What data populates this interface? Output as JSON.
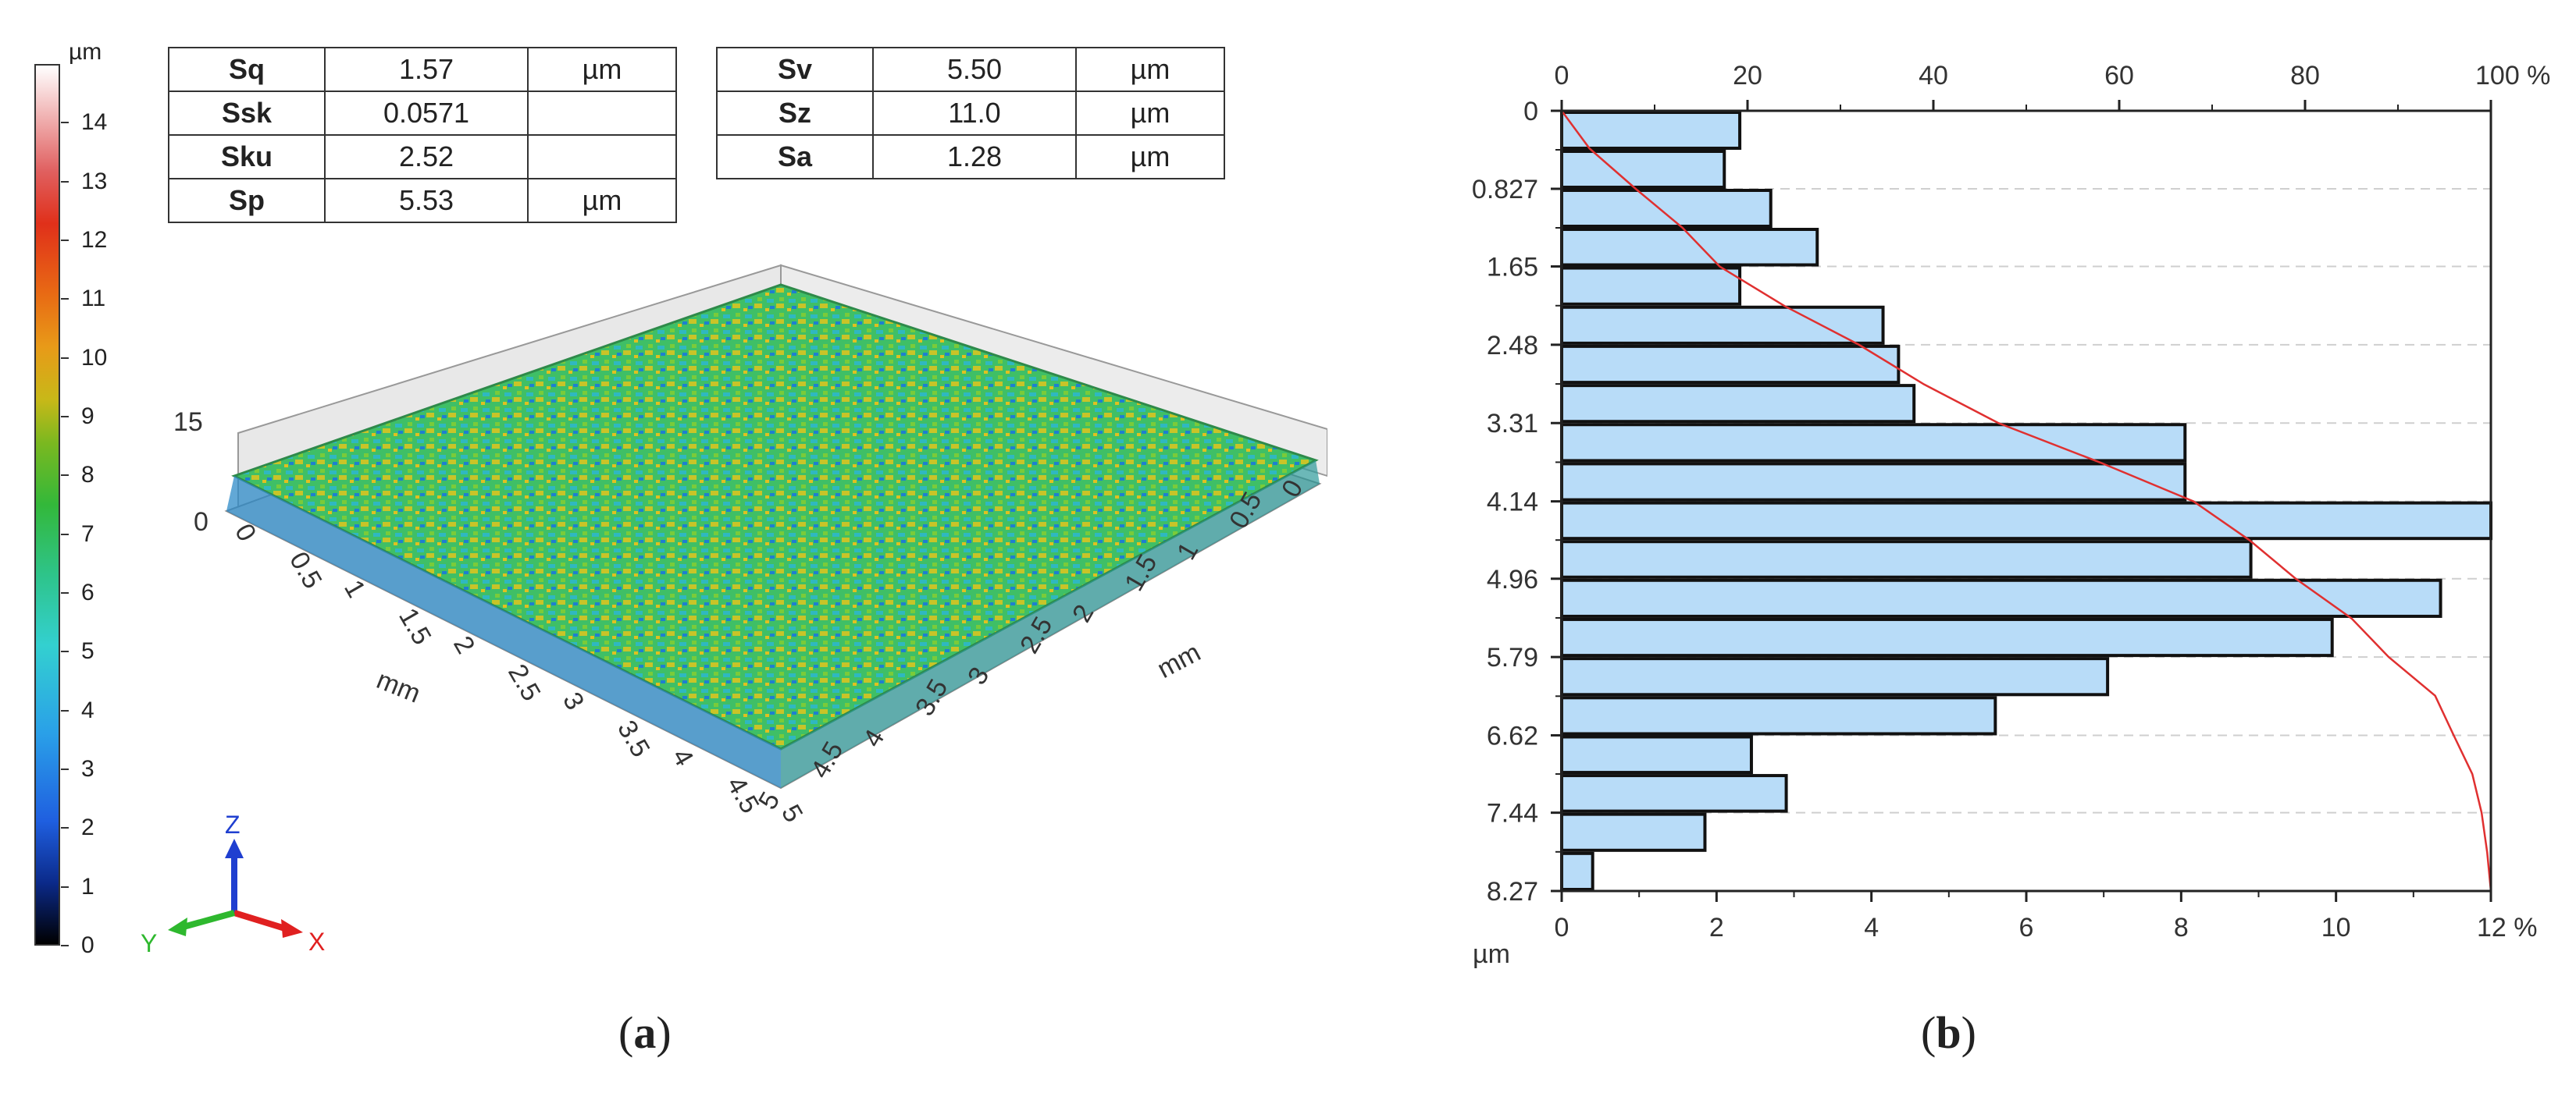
{
  "panel_a": {
    "caption": "a",
    "colorbar": {
      "unit": "µm",
      "ticks": [
        "0",
        "1",
        "2",
        "3",
        "4",
        "5",
        "6",
        "7",
        "8",
        "9",
        "10",
        "11",
        "12",
        "13",
        "14"
      ]
    },
    "params_left": [
      {
        "name": "Sq",
        "value": "1.57",
        "unit": "µm"
      },
      {
        "name": "Ssk",
        "value": "0.0571",
        "unit": ""
      },
      {
        "name": "Sku",
        "value": "2.52",
        "unit": ""
      },
      {
        "name": "Sp",
        "value": "5.53",
        "unit": "µm"
      }
    ],
    "params_right": [
      {
        "name": "Sv",
        "value": "5.50",
        "unit": "µm"
      },
      {
        "name": "Sz",
        "value": "11.0",
        "unit": "µm"
      },
      {
        "name": "Sa",
        "value": "1.28",
        "unit": "µm"
      }
    ],
    "surface": {
      "z_ticks": [
        "0",
        "15"
      ],
      "axis_unit": "mm",
      "left_axis_ticks": [
        "0",
        "0.5",
        "1",
        "1.5",
        "2",
        "2.5",
        "3",
        "3.5",
        "4",
        "4.5",
        "5"
      ],
      "right_axis_ticks": [
        "0",
        "0.5",
        "1",
        "1.5",
        "2",
        "2.5",
        "3",
        "3.5",
        "4",
        "4.5",
        "5"
      ]
    },
    "triad": {
      "z": "Z",
      "y": "Y",
      "x": "X",
      "colors": {
        "z": "#1f3fd0",
        "y": "#2eb82e",
        "x": "#e02020"
      }
    }
  },
  "panel_b": {
    "caption": "b",
    "chart_data": {
      "type": "bar",
      "orientation": "horizontal",
      "y_axis_label": "µm",
      "y_tick_labels": [
        "0",
        "0.827",
        "1.65",
        "2.48",
        "3.31",
        "4.14",
        "4.96",
        "5.79",
        "6.62",
        "7.44",
        "8.27"
      ],
      "ylim": [
        0,
        8.27
      ],
      "bin_edges": [
        0,
        0.4135,
        0.827,
        1.2405,
        1.65,
        2.0655,
        2.48,
        2.8955,
        3.31,
        3.725,
        4.14,
        4.55,
        4.96,
        5.375,
        5.79,
        6.205,
        6.62,
        7.03,
        7.44,
        7.855,
        8.27
      ],
      "bar_percent": [
        2.3,
        2.1,
        2.7,
        3.3,
        2.3,
        4.15,
        4.35,
        4.55,
        8.05,
        8.05,
        12.0,
        8.9,
        11.35,
        9.95,
        7.05,
        5.6,
        2.45,
        2.9,
        1.85,
        0.4
      ],
      "bottom_axis_ticks": [
        "0",
        "2",
        "4",
        "6",
        "8",
        "10",
        "12 %"
      ],
      "bottom_axis_range": [
        0,
        12
      ],
      "top_axis_ticks": [
        "0",
        "20",
        "40",
        "60",
        "80",
        "100 %"
      ],
      "top_axis_range": [
        0,
        100
      ],
      "cumulative_curve": {
        "depth": [
          0,
          0.4,
          0.83,
          1.24,
          1.65,
          2.07,
          2.48,
          2.9,
          3.31,
          3.73,
          4.14,
          4.55,
          4.96,
          5.38,
          5.79,
          6.2,
          6.62,
          7.03,
          7.44,
          7.86,
          8.27
        ],
        "percent": [
          0,
          3,
          8,
          13,
          17,
          24,
          32,
          39,
          47,
          58,
          68,
          74,
          79,
          85,
          89,
          94,
          96,
          98,
          99,
          99.6,
          100
        ]
      },
      "colors": {
        "bar_fill": "#b8dcf8",
        "bar_stroke": "#111111",
        "curve": "#e03030",
        "grid": "#cfcfcf"
      }
    }
  }
}
